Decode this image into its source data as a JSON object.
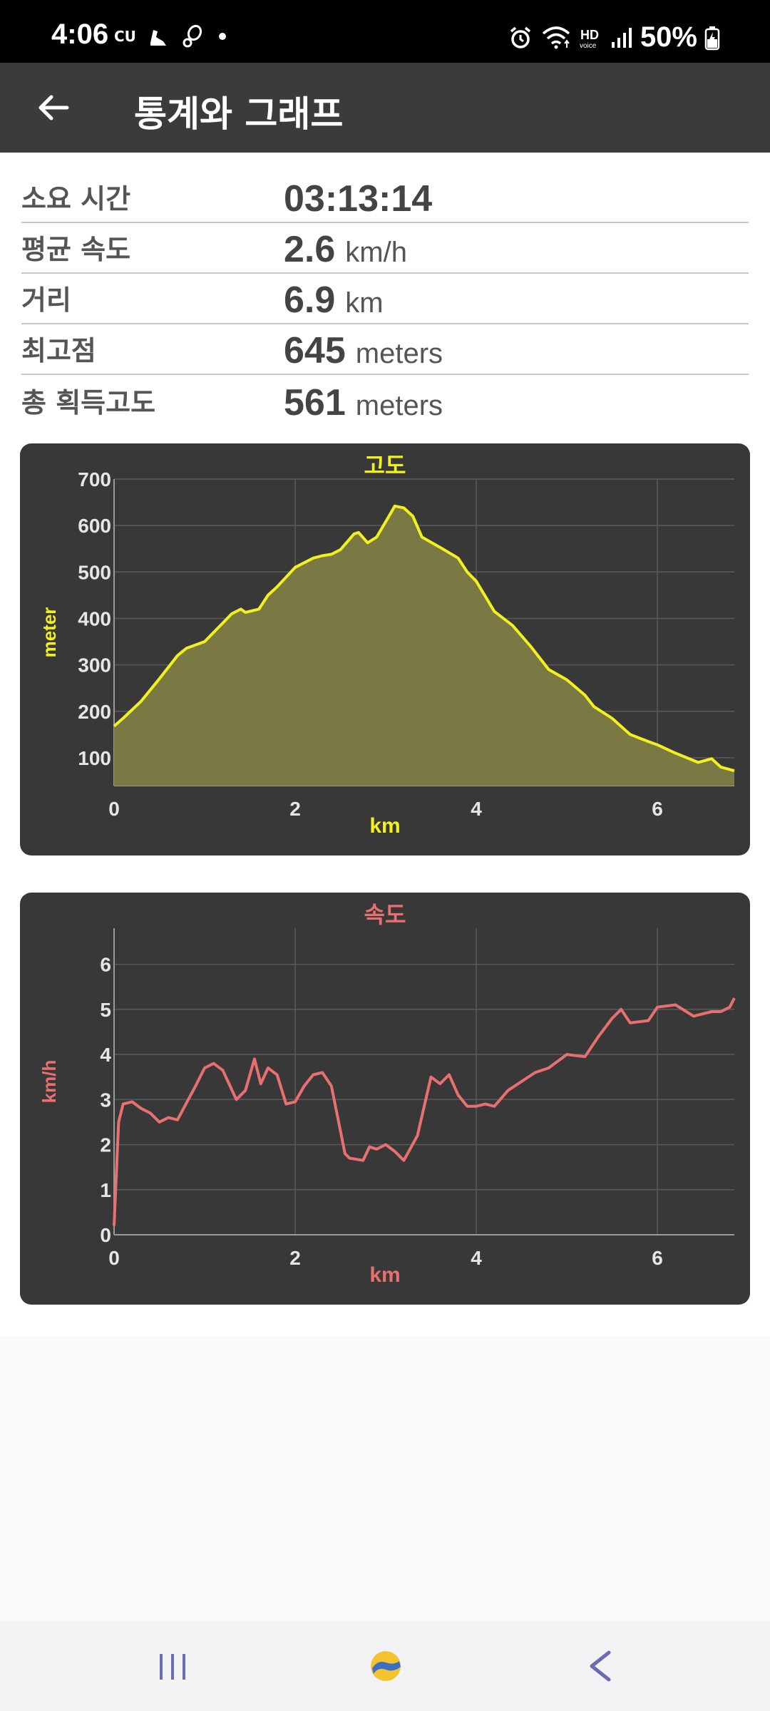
{
  "status_bar": {
    "time": "4:06",
    "carrier": "CU",
    "battery": "50%",
    "icons": [
      "shoe-icon",
      "footprint-icon",
      "dot-icon",
      "alarm-icon",
      "wifi-icon",
      "hd-voice-icon",
      "signal-icon",
      "battery-icon"
    ]
  },
  "app_bar": {
    "title": "통계와 그래프"
  },
  "stats": [
    {
      "label": "소요 시간",
      "value": "03:13:14",
      "unit": ""
    },
    {
      "label": "평균 속도",
      "value": "2.6",
      "unit": "km/h"
    },
    {
      "label": "거리",
      "value": "6.9",
      "unit": "km"
    },
    {
      "label": "최고점",
      "value": "645",
      "unit": "meters"
    },
    {
      "label": "총 획득고도",
      "value": "561",
      "unit": "meters"
    }
  ],
  "chart_data": [
    {
      "type": "area",
      "title": "고도",
      "xlabel": "km",
      "ylabel": "meter",
      "xlim": [
        0,
        6.85
      ],
      "ylim": [
        40,
        700
      ],
      "xticks": [
        "0",
        "2",
        "4",
        "6"
      ],
      "yticks": [
        "100",
        "200",
        "300",
        "400",
        "500",
        "600",
        "700"
      ],
      "grid": true,
      "line_color": "#f2f01e",
      "fill_color": "#7a7843",
      "x": [
        0,
        0.1,
        0.3,
        0.5,
        0.7,
        0.8,
        1.0,
        1.2,
        1.3,
        1.4,
        1.45,
        1.6,
        1.7,
        1.8,
        2.0,
        2.2,
        2.3,
        2.4,
        2.5,
        2.65,
        2.7,
        2.8,
        2.9,
        3.05,
        3.1,
        3.2,
        3.3,
        3.4,
        3.6,
        3.8,
        3.9,
        4.0,
        4.2,
        4.4,
        4.6,
        4.8,
        5.0,
        5.2,
        5.3,
        5.5,
        5.7,
        5.9,
        6.0,
        6.2,
        6.45,
        6.6,
        6.7,
        6.85
      ],
      "y": [
        168,
        185,
        222,
        270,
        320,
        336,
        350,
        390,
        410,
        420,
        413,
        420,
        450,
        468,
        510,
        530,
        535,
        538,
        548,
        582,
        585,
        563,
        575,
        625,
        642,
        638,
        620,
        575,
        553,
        530,
        500,
        480,
        415,
        385,
        340,
        290,
        268,
        235,
        210,
        185,
        150,
        135,
        128,
        110,
        90,
        98,
        80,
        72
      ]
    },
    {
      "type": "line",
      "title": "속도",
      "xlabel": "km",
      "ylabel": "km/h",
      "xlim": [
        0,
        6.85
      ],
      "ylim": [
        0,
        6.8
      ],
      "xticks": [
        "0",
        "2",
        "4",
        "6"
      ],
      "yticks": [
        "0",
        "1",
        "2",
        "3",
        "4",
        "5",
        "6"
      ],
      "grid": true,
      "line_color": "#e87070",
      "x": [
        0,
        0.05,
        0.1,
        0.2,
        0.3,
        0.4,
        0.5,
        0.6,
        0.7,
        0.9,
        1.0,
        1.1,
        1.2,
        1.35,
        1.45,
        1.55,
        1.62,
        1.7,
        1.8,
        1.9,
        2.0,
        2.1,
        2.2,
        2.3,
        2.4,
        2.55,
        2.6,
        2.75,
        2.82,
        2.9,
        3.0,
        3.1,
        3.2,
        3.35,
        3.5,
        3.6,
        3.7,
        3.8,
        3.9,
        4.0,
        4.1,
        4.2,
        4.35,
        4.5,
        4.65,
        4.8,
        5.0,
        5.2,
        5.35,
        5.5,
        5.6,
        5.7,
        5.9,
        6.0,
        6.2,
        6.4,
        6.6,
        6.7,
        6.8,
        6.85
      ],
      "y": [
        0.2,
        2.5,
        2.9,
        2.95,
        2.8,
        2.7,
        2.5,
        2.6,
        2.55,
        3.3,
        3.7,
        3.8,
        3.65,
        3.0,
        3.2,
        3.9,
        3.35,
        3.7,
        3.55,
        2.9,
        2.95,
        3.3,
        3.55,
        3.6,
        3.3,
        1.8,
        1.7,
        1.65,
        1.95,
        1.9,
        2.0,
        1.85,
        1.65,
        2.2,
        3.5,
        3.35,
        3.55,
        3.1,
        2.85,
        2.85,
        2.9,
        2.85,
        3.2,
        3.4,
        3.6,
        3.7,
        4.0,
        3.95,
        4.4,
        4.8,
        5.0,
        4.7,
        4.75,
        5.05,
        5.1,
        4.85,
        4.95,
        4.95,
        5.05,
        5.25
      ]
    }
  ],
  "nav_bar": {
    "icons": [
      "recent-apps-icon",
      "home-icon",
      "back-icon"
    ]
  }
}
